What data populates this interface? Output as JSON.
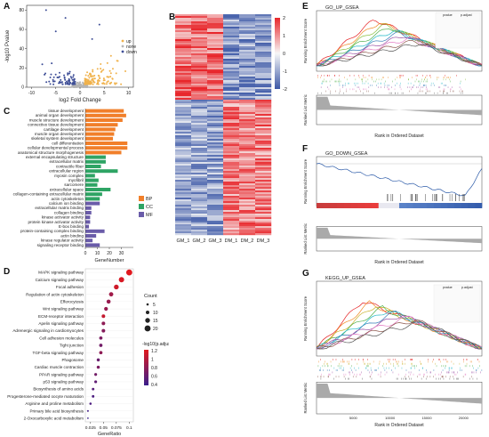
{
  "panels": {
    "A": {
      "label": "A",
      "chart_data": {
        "type": "scatter",
        "xlabel": "log2 Fold Change",
        "ylabel": "-log10 Pvalue",
        "xticks": [
          -10,
          -5,
          0,
          5,
          10
        ],
        "yticks": [
          0,
          20,
          40,
          60,
          80
        ],
        "xlim": [
          -11,
          11
        ],
        "ylim": [
          0,
          85
        ],
        "legend": [
          "up",
          "none",
          "down"
        ],
        "colors": {
          "up": "#f0b24c",
          "none": "#b5b5b5",
          "down": "#3f4f97"
        },
        "legend_position": "right"
      }
    },
    "B": {
      "label": "B",
      "chart_data": {
        "type": "heatmap",
        "columns": [
          "GM_1",
          "GM_2",
          "GM_3",
          "DM_1",
          "DM_2",
          "DM_3"
        ],
        "scale_ticks": [
          2,
          1,
          0,
          -1,
          -2
        ],
        "colors": {
          "high": "#e8262b",
          "mid": "#f7f7f7",
          "low": "#3b57a6"
        }
      }
    },
    "C": {
      "label": "C",
      "chart_data": {
        "type": "bar",
        "orientation": "horizontal",
        "xlabel": "GeneNumber",
        "xticks": [
          0,
          10,
          20,
          30
        ],
        "xlim": [
          0,
          40
        ],
        "legend": [
          {
            "name": "BP",
            "color": "#f17f2a"
          },
          {
            "name": "CC",
            "color": "#2ea464"
          },
          {
            "name": "MF",
            "color": "#6a5ca9"
          }
        ],
        "categories": [
          {
            "term": "tissue development",
            "value": 32,
            "group": "BP"
          },
          {
            "term": "animal organ development",
            "value": 34,
            "group": "BP"
          },
          {
            "term": "muscle structure development",
            "value": 31,
            "group": "BP"
          },
          {
            "term": "connective tissue development",
            "value": 27,
            "group": "BP"
          },
          {
            "term": "cartilage development",
            "value": 25,
            "group": "BP"
          },
          {
            "term": "muscle organ development",
            "value": 24,
            "group": "BP"
          },
          {
            "term": "skeletal system development",
            "value": 23,
            "group": "BP"
          },
          {
            "term": "cell differentiation",
            "value": 35,
            "group": "BP"
          },
          {
            "term": "cellular developmental process",
            "value": 35,
            "group": "BP"
          },
          {
            "term": "anatomical structure morphogenesis",
            "value": 30,
            "group": "BP"
          },
          {
            "term": "external encapsulating structure",
            "value": 17,
            "group": "CC"
          },
          {
            "term": "extracellular matrix",
            "value": 17,
            "group": "CC"
          },
          {
            "term": "contractile fiber",
            "value": 13,
            "group": "CC"
          },
          {
            "term": "extracellular region",
            "value": 27,
            "group": "CC"
          },
          {
            "term": "myosin complex",
            "value": 8,
            "group": "CC"
          },
          {
            "term": "myofibril",
            "value": 11,
            "group": "CC"
          },
          {
            "term": "sarcomere",
            "value": 10,
            "group": "CC"
          },
          {
            "term": "extracellular space",
            "value": 21,
            "group": "CC"
          },
          {
            "term": "collagen-containing extracellular matrix",
            "value": 14,
            "group": "CC"
          },
          {
            "term": "actin cytoskeleton",
            "value": 12,
            "group": "CC"
          },
          {
            "term": "calcium ion binding",
            "value": 12,
            "group": "MF"
          },
          {
            "term": "extracellular matrix binding",
            "value": 5,
            "group": "MF"
          },
          {
            "term": "collagen binding",
            "value": 5,
            "group": "MF"
          },
          {
            "term": "kinase activator activity",
            "value": 4,
            "group": "MF"
          },
          {
            "term": "protein kinase activator activity",
            "value": 4,
            "group": "MF"
          },
          {
            "term": "E-box binding",
            "value": 3,
            "group": "MF"
          },
          {
            "term": "protein-containing complex binding",
            "value": 16,
            "group": "MF"
          },
          {
            "term": "actin binding",
            "value": 9,
            "group": "MF"
          },
          {
            "term": "kinase regulator activity",
            "value": 6,
            "group": "MF"
          },
          {
            "term": "signaling receptor binding",
            "value": 12,
            "group": "MF"
          }
        ]
      }
    },
    "D": {
      "label": "D",
      "chart_data": {
        "type": "scatter",
        "xlabel": "GeneRatio",
        "xticks": [
          0.025,
          0.05,
          0.075,
          0.1
        ],
        "xlim": [
          0.015,
          0.108
        ],
        "size_legend_title": "Count",
        "size_legend": [
          5,
          10,
          15,
          20
        ],
        "color_legend_title": "-log10(p.adjust)",
        "color_legend": [
          1.2,
          1.0,
          0.8,
          0.6,
          0.4
        ],
        "points": [
          {
            "term": "MAPK signaling pathway",
            "x": 0.1,
            "count": 20,
            "p": 1.3
          },
          {
            "term": "Calcium signaling pathway",
            "x": 0.085,
            "count": 17,
            "p": 1.25
          },
          {
            "term": "Focal adhesion",
            "x": 0.075,
            "count": 15,
            "p": 1.2
          },
          {
            "term": "Regulation of actin cytoskeleton",
            "x": 0.065,
            "count": 13,
            "p": 0.95
          },
          {
            "term": "Efferocytosis",
            "x": 0.06,
            "count": 12,
            "p": 0.9
          },
          {
            "term": "Wnt signaling pathway",
            "x": 0.055,
            "count": 11,
            "p": 0.9
          },
          {
            "term": "ECM-receptor interaction",
            "x": 0.05,
            "count": 10,
            "p": 1.15
          },
          {
            "term": "Apelin signaling pathway",
            "x": 0.05,
            "count": 10,
            "p": 0.85
          },
          {
            "term": "Adrenergic signaling in cardiomyocytes",
            "x": 0.05,
            "count": 10,
            "p": 0.8
          },
          {
            "term": "Cell adhesion molecules",
            "x": 0.045,
            "count": 9,
            "p": 0.75
          },
          {
            "term": "Tight junction",
            "x": 0.045,
            "count": 9,
            "p": 0.7
          },
          {
            "term": "TGF-beta signaling pathway",
            "x": 0.045,
            "count": 9,
            "p": 0.85
          },
          {
            "term": "Phagosome",
            "x": 0.04,
            "count": 8,
            "p": 0.65
          },
          {
            "term": "Cardiac muscle contraction",
            "x": 0.04,
            "count": 8,
            "p": 0.75
          },
          {
            "term": "PPAR signaling pathway",
            "x": 0.035,
            "count": 7,
            "p": 0.7
          },
          {
            "term": "p53 signaling pathway",
            "x": 0.035,
            "count": 7,
            "p": 0.6
          },
          {
            "term": "Biosynthesis of amino acids",
            "x": 0.03,
            "count": 6,
            "p": 0.55
          },
          {
            "term": "Progesterone-mediated oocyte maturation",
            "x": 0.03,
            "count": 6,
            "p": 0.5
          },
          {
            "term": "Arginine and proline metabolism",
            "x": 0.025,
            "count": 5,
            "p": 0.5
          },
          {
            "term": "Primary bile acid biosynthesis",
            "x": 0.02,
            "count": 3,
            "p": 0.45
          },
          {
            "term": "2-Oxocarboxylic acid metabolism",
            "x": 0.02,
            "count": 2,
            "p": 0.4
          }
        ]
      }
    },
    "E": {
      "label": "E",
      "title": "GO_UP_GSEA",
      "ylabel_top": "Running Enrichment Score",
      "ylabel_bottom": "Ranked List Metric",
      "xlabel": "Rank in Ordered Dataset",
      "series_colors": [
        "#e41a1c",
        "#f08a24",
        "#8bbf3f",
        "#4daf4a",
        "#22b8c8",
        "#377eb8",
        "#984ea3",
        "#e377c2",
        "#8c564b",
        "#555555"
      ],
      "table_header": [
        "pvalue",
        "p.adjust"
      ]
    },
    "F": {
      "label": "F",
      "title": "GO_DOWN_GSEA",
      "ylabel_top": "Running Enrichment Score",
      "ylabel_bottom": "Ranked List Metric",
      "xlabel": "Rank in Ordered Dataset",
      "line_color": "#2b5aa8"
    },
    "G": {
      "label": "G",
      "title": "KEGG_UP_GSEA",
      "ylabel_top": "Running Enrichment Score",
      "ylabel_bottom": "Ranked List Metric",
      "xlabel": "Rank in Ordered Dataset",
      "xticks": [
        "5000",
        "10000",
        "15000",
        "20000"
      ],
      "series_colors": [
        "#e41a1c",
        "#f08a24",
        "#c8b12a",
        "#4daf4a",
        "#22b8c8",
        "#377eb8",
        "#984ea3",
        "#e377c2",
        "#8c564b",
        "#555555"
      ],
      "table_header": [
        "pvalue",
        "p.adjust"
      ]
    }
  }
}
